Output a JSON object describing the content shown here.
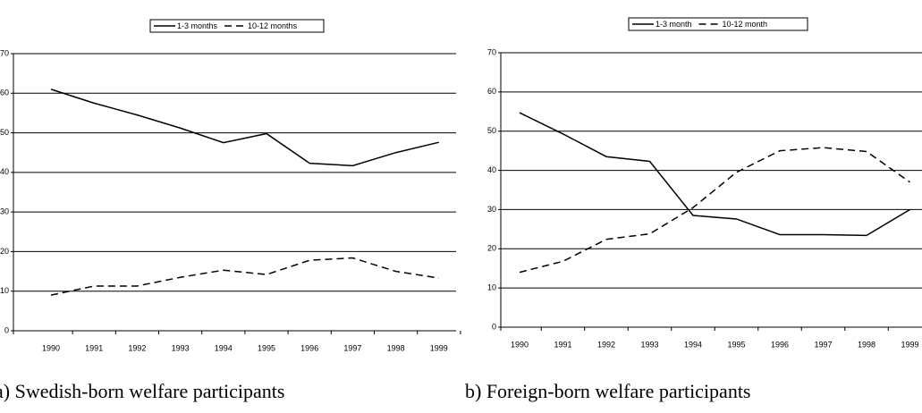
{
  "chart_data": [
    {
      "type": "line",
      "caption": "a) Swedish-born welfare participants",
      "categories": [
        "1990",
        "1991",
        "1992",
        "1993",
        "1994",
        "1995",
        "1996",
        "1997",
        "1998",
        "1999"
      ],
      "series": [
        {
          "name": "1-3 months",
          "color": "#000000",
          "line_style": "solid",
          "values": [
            61,
            57.5,
            54.5,
            51.2,
            47.5,
            49.8,
            42.3,
            41.7,
            45,
            47.6
          ]
        },
        {
          "name": "10-12 months",
          "color": "#000000",
          "line_style": "dashed",
          "values": [
            9,
            11.3,
            11.3,
            13.5,
            15.3,
            14.2,
            17.8,
            18.4,
            15,
            13.3
          ]
        }
      ],
      "ylim": [
        0,
        70
      ],
      "yticks": [
        0,
        10,
        20,
        30,
        40,
        50,
        60,
        70
      ],
      "grid": true,
      "legend": "top"
    },
    {
      "type": "line",
      "caption": "b) Foreign-born welfare participants",
      "categories": [
        "1990",
        "1991",
        "1992",
        "1993",
        "1994",
        "1995",
        "1996",
        "1997",
        "1998",
        "1999"
      ],
      "series": [
        {
          "name": "1-3 month",
          "color": "#000000",
          "line_style": "solid",
          "values": [
            54.7,
            49.3,
            43.5,
            42.3,
            28.5,
            27.6,
            23.6,
            23.6,
            23.4,
            30
          ]
        },
        {
          "name": "10-12 month",
          "color": "#000000",
          "line_style": "dashed",
          "values": [
            14,
            16.8,
            22.4,
            23.8,
            30.5,
            39.5,
            45,
            45.8,
            44.8,
            37
          ]
        }
      ],
      "ylim": [
        0,
        70
      ],
      "yticks": [
        0,
        10,
        20,
        30,
        40,
        50,
        60,
        70
      ],
      "grid": true,
      "legend": "top"
    }
  ]
}
